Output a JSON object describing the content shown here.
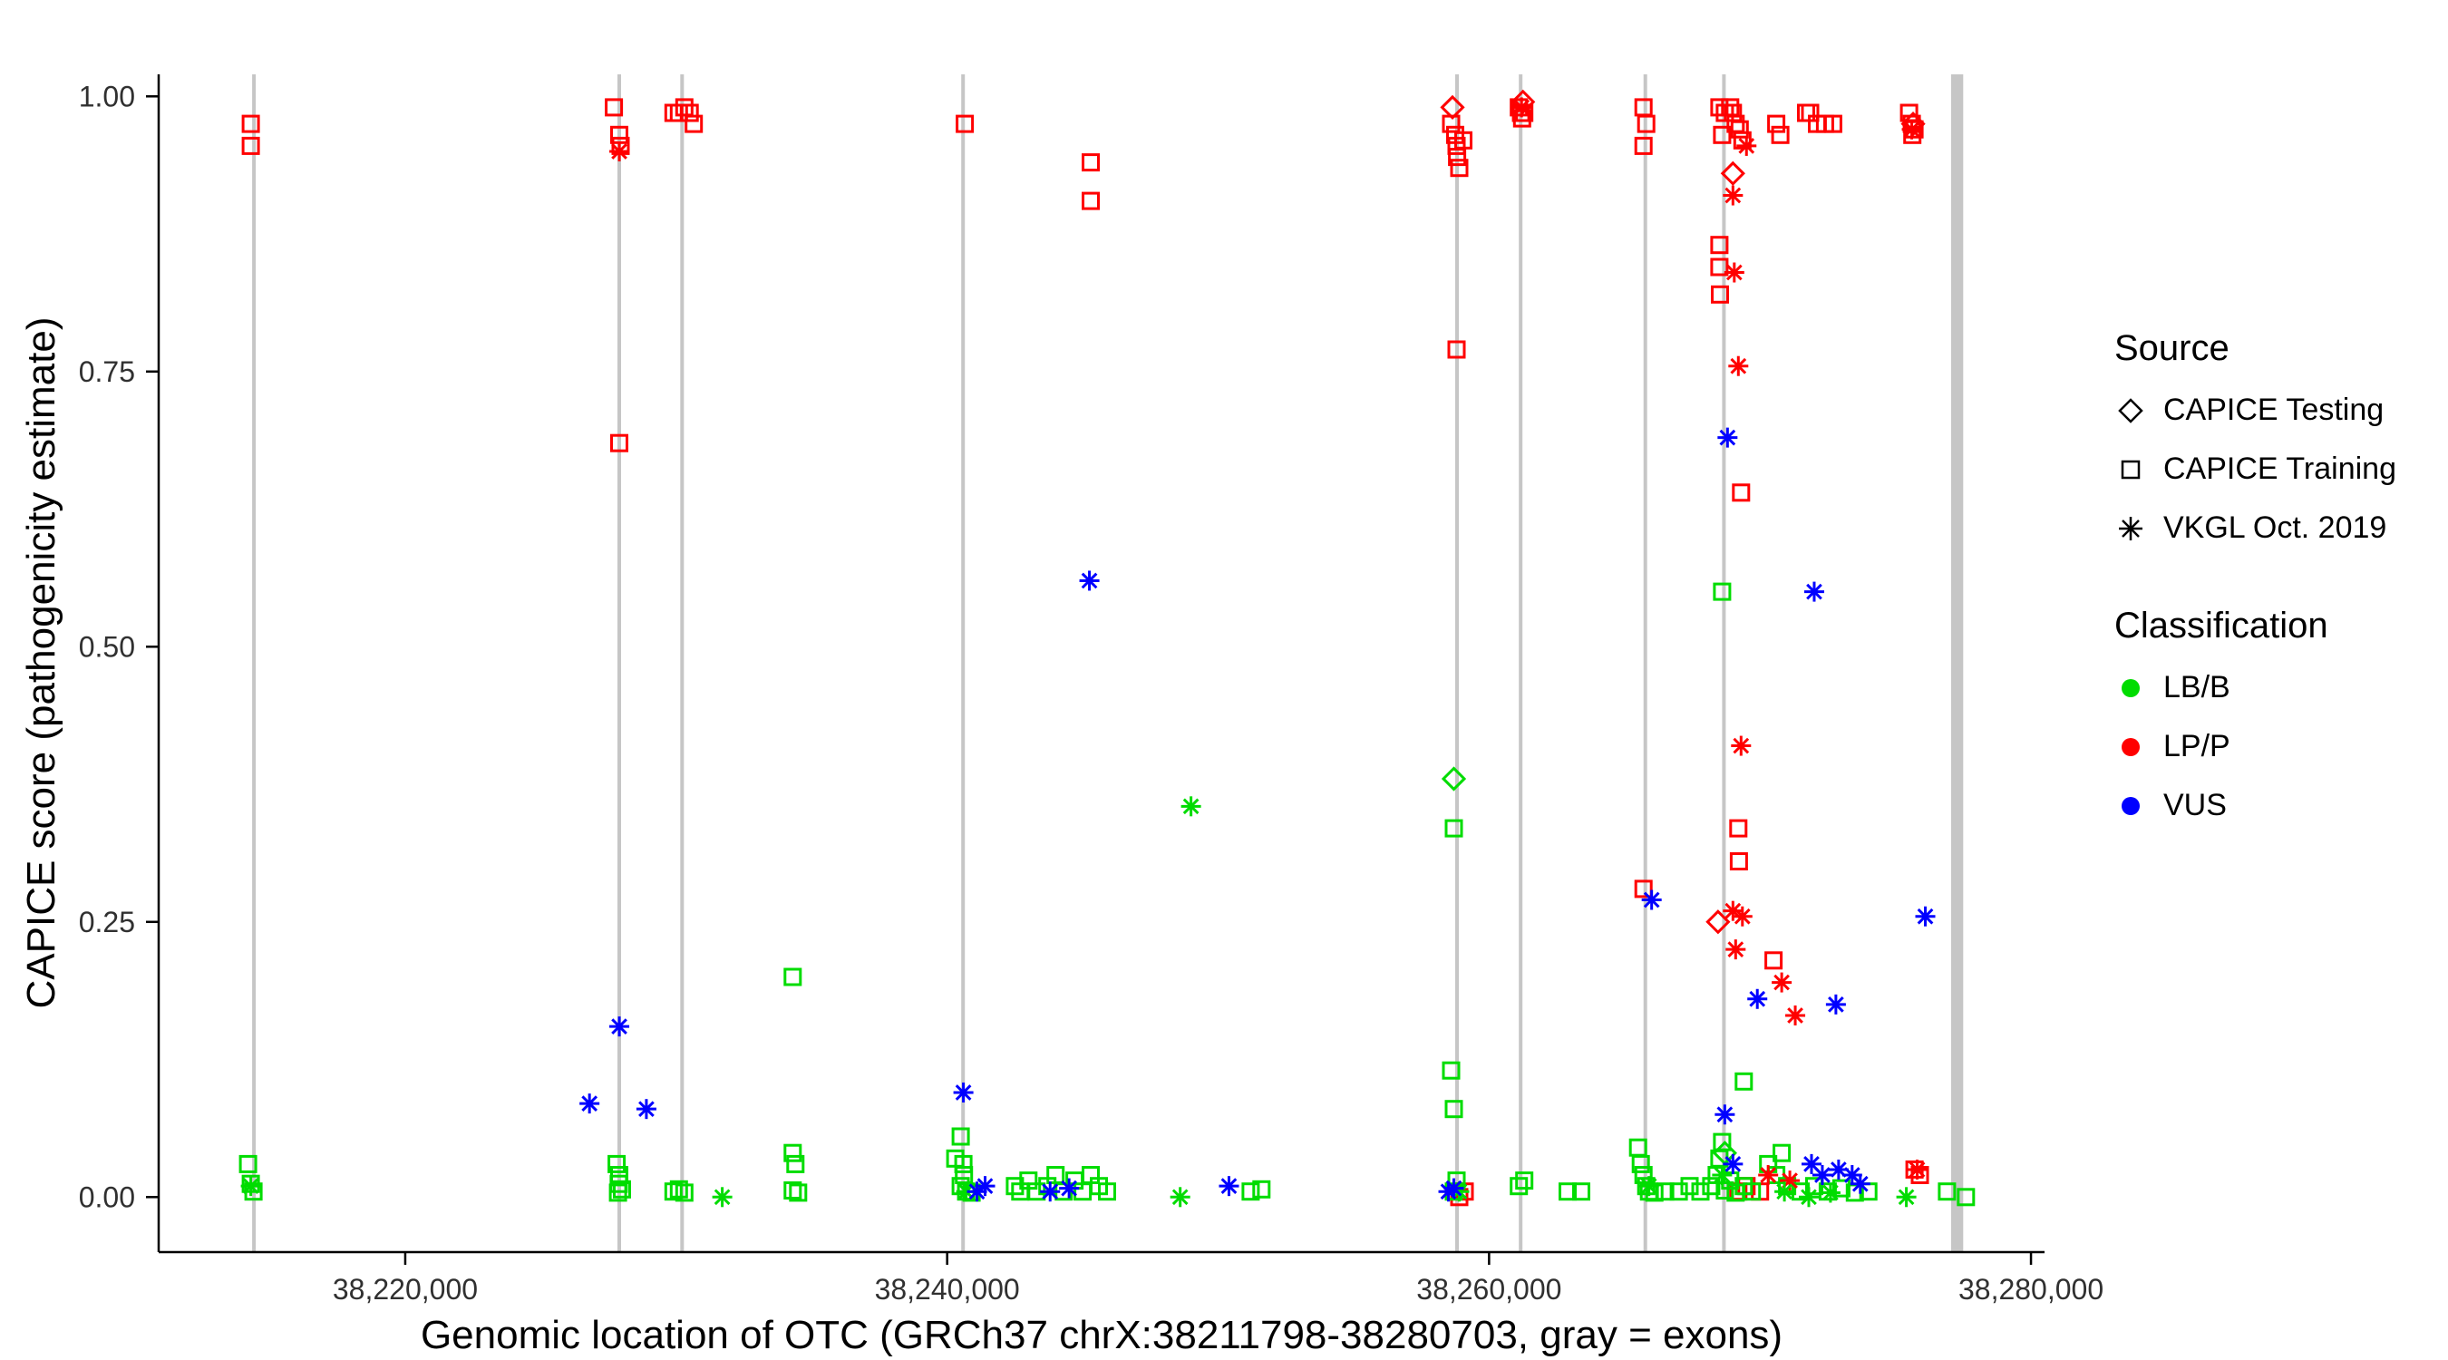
{
  "legend": {
    "source": {
      "title": "Source",
      "items": [
        {
          "label": "CAPICE Testing",
          "marker": "diamond"
        },
        {
          "label": "CAPICE Training",
          "marker": "square"
        },
        {
          "label": "VKGL Oct. 2019",
          "marker": "asterisk"
        }
      ]
    },
    "classification": {
      "title": "Classification",
      "items": [
        {
          "label": "LB/B"
        },
        {
          "label": "LP/P"
        },
        {
          "label": "VUS"
        }
      ]
    }
  },
  "chart_data": {
    "type": "scatter",
    "xlabel": "Genomic location of OTC (GRCh37 chrX:38211798-38280703, gray = exons)",
    "ylabel": "CAPICE score (pathogenicity estimate)",
    "xlim": [
      38210900,
      38280500
    ],
    "ylim": [
      -0.05,
      1.02
    ],
    "xticks": [
      {
        "value": 38220000,
        "label": "38,220,000"
      },
      {
        "value": 38240000,
        "label": "38,240,000"
      },
      {
        "value": 38260000,
        "label": "38,260,000"
      },
      {
        "value": 38280000,
        "label": "38,280,000"
      }
    ],
    "yticks": [
      {
        "value": 0.0,
        "label": "0.00"
      },
      {
        "value": 0.25,
        "label": "0.25"
      },
      {
        "value": 0.5,
        "label": "0.50"
      },
      {
        "value": 0.75,
        "label": "0.75"
      },
      {
        "value": 1.0,
        "label": "1.00"
      }
    ],
    "colors": {
      "LB/B": "#00DC00",
      "LP/P": "#FF0000",
      "VUS": "#0000FF",
      "exon": "#C6C6C6",
      "axis": "#000000",
      "tick_text": "#303030"
    },
    "exons": [
      [
        38214350,
        38214480
      ],
      [
        38227830,
        38227960
      ],
      [
        38230150,
        38230280
      ],
      [
        38240520,
        38240650
      ],
      [
        38258750,
        38258880
      ],
      [
        38261100,
        38261230
      ],
      [
        38265700,
        38265830
      ],
      [
        38268600,
        38268730
      ],
      [
        38277050,
        38277500
      ]
    ],
    "series": [
      {
        "source": "CAPICE Testing",
        "classification": "LP/P",
        "points": [
          [
            38258650,
            0.99
          ],
          [
            38261250,
            0.995
          ],
          [
            38269000,
            0.93
          ],
          [
            38268450,
            0.25
          ],
          [
            38275650,
            0.975
          ]
        ]
      },
      {
        "source": "CAPICE Testing",
        "classification": "LB/B",
        "points": [
          [
            38258700,
            0.38
          ],
          [
            38268700,
            0.04
          ]
        ]
      },
      {
        "source": "CAPICE Training",
        "classification": "LP/P",
        "points": [
          [
            38214300,
            0.975
          ],
          [
            38214300,
            0.955
          ],
          [
            38227700,
            0.99
          ],
          [
            38227900,
            0.965
          ],
          [
            38227950,
            0.955
          ],
          [
            38227900,
            0.685
          ],
          [
            38229900,
            0.985
          ],
          [
            38230100,
            0.985
          ],
          [
            38230300,
            0.99
          ],
          [
            38230500,
            0.985
          ],
          [
            38230650,
            0.975
          ],
          [
            38240650,
            0.975
          ],
          [
            38245300,
            0.94
          ],
          [
            38245300,
            0.905
          ],
          [
            38258600,
            0.975
          ],
          [
            38258750,
            0.965
          ],
          [
            38258800,
            0.955
          ],
          [
            38258820,
            0.945
          ],
          [
            38258900,
            0.935
          ],
          [
            38259050,
            0.96
          ],
          [
            38258800,
            0.77
          ],
          [
            38258900,
            0.0
          ],
          [
            38259100,
            0.005
          ],
          [
            38261100,
            0.99
          ],
          [
            38261180,
            0.985
          ],
          [
            38261300,
            0.985
          ],
          [
            38261220,
            0.98
          ],
          [
            38265700,
            0.99
          ],
          [
            38265800,
            0.975
          ],
          [
            38265700,
            0.955
          ],
          [
            38265700,
            0.28
          ],
          [
            38268500,
            0.99
          ],
          [
            38268700,
            0.985
          ],
          [
            38268900,
            0.99
          ],
          [
            38269000,
            0.985
          ],
          [
            38269100,
            0.975
          ],
          [
            38269250,
            0.97
          ],
          [
            38268600,
            0.965
          ],
          [
            38269350,
            0.96
          ],
          [
            38268500,
            0.865
          ],
          [
            38268500,
            0.845
          ],
          [
            38268520,
            0.82
          ],
          [
            38269300,
            0.64
          ],
          [
            38269200,
            0.335
          ],
          [
            38269220,
            0.305
          ],
          [
            38270500,
            0.215
          ],
          [
            38270600,
            0.975
          ],
          [
            38270750,
            0.965
          ],
          [
            38271700,
            0.985
          ],
          [
            38271850,
            0.985
          ],
          [
            38272100,
            0.975
          ],
          [
            38272400,
            0.975
          ],
          [
            38272700,
            0.975
          ],
          [
            38269200,
            0.005
          ],
          [
            38269500,
            0.01
          ],
          [
            38270000,
            0.005
          ],
          [
            38275500,
            0.985
          ],
          [
            38275600,
            0.975
          ],
          [
            38275700,
            0.97
          ],
          [
            38275620,
            0.965
          ],
          [
            38275700,
            0.025
          ],
          [
            38275900,
            0.02
          ]
        ]
      },
      {
        "source": "CAPICE Training",
        "classification": "LB/B",
        "points": [
          [
            38214200,
            0.03
          ],
          [
            38214300,
            0.012
          ],
          [
            38214400,
            0.005
          ],
          [
            38227800,
            0.03
          ],
          [
            38227900,
            0.02
          ],
          [
            38227880,
            0.012
          ],
          [
            38228000,
            0.007
          ],
          [
            38227850,
            0.004
          ],
          [
            38229900,
            0.005
          ],
          [
            38230100,
            0.007
          ],
          [
            38230300,
            0.004
          ],
          [
            38234300,
            0.2
          ],
          [
            38234300,
            0.04
          ],
          [
            38234400,
            0.03
          ],
          [
            38234300,
            0.006
          ],
          [
            38234500,
            0.004
          ],
          [
            38240300,
            0.035
          ],
          [
            38240500,
            0.055
          ],
          [
            38240600,
            0.03
          ],
          [
            38240620,
            0.02
          ],
          [
            38240500,
            0.01
          ],
          [
            38240700,
            0.005
          ],
          [
            38240900,
            0.004
          ],
          [
            38242500,
            0.01
          ],
          [
            38242700,
            0.005
          ],
          [
            38243000,
            0.015
          ],
          [
            38243300,
            0.005
          ],
          [
            38243700,
            0.01
          ],
          [
            38244000,
            0.02
          ],
          [
            38244300,
            0.005
          ],
          [
            38244700,
            0.015
          ],
          [
            38245000,
            0.005
          ],
          [
            38245300,
            0.02
          ],
          [
            38245600,
            0.01
          ],
          [
            38245900,
            0.005
          ],
          [
            38251200,
            0.005
          ],
          [
            38251600,
            0.007
          ],
          [
            38258600,
            0.115
          ],
          [
            38258700,
            0.08
          ],
          [
            38258800,
            0.015
          ],
          [
            38258700,
            0.005
          ],
          [
            38258700,
            0.335
          ],
          [
            38261100,
            0.01
          ],
          [
            38261300,
            0.015
          ],
          [
            38262900,
            0.005
          ],
          [
            38263400,
            0.005
          ],
          [
            38265500,
            0.045
          ],
          [
            38265600,
            0.03
          ],
          [
            38265700,
            0.02
          ],
          [
            38265800,
            0.01
          ],
          [
            38265900,
            0.005
          ],
          [
            38266100,
            0.004
          ],
          [
            38266500,
            0.005
          ],
          [
            38267000,
            0.005
          ],
          [
            38267400,
            0.01
          ],
          [
            38267800,
            0.005
          ],
          [
            38268200,
            0.01
          ],
          [
            38268400,
            0.02
          ],
          [
            38268500,
            0.035
          ],
          [
            38268600,
            0.05
          ],
          [
            38268700,
            0.006
          ],
          [
            38268900,
            0.015
          ],
          [
            38269100,
            0.004
          ],
          [
            38269400,
            0.01
          ],
          [
            38269700,
            0.005
          ],
          [
            38268600,
            0.55
          ],
          [
            38269400,
            0.105
          ],
          [
            38270300,
            0.03
          ],
          [
            38270600,
            0.02
          ],
          [
            38270800,
            0.04
          ],
          [
            38271000,
            0.01
          ],
          [
            38271500,
            0.005
          ],
          [
            38272000,
            0.01
          ],
          [
            38272500,
            0.005
          ],
          [
            38273000,
            0.008
          ],
          [
            38273500,
            0.004
          ],
          [
            38274000,
            0.005
          ],
          [
            38276900,
            0.005
          ],
          [
            38277600,
            0.0
          ]
        ]
      },
      {
        "source": "VKGL Oct. 2019",
        "classification": "LP/P",
        "points": [
          [
            38227900,
            0.95
          ],
          [
            38261200,
            0.99
          ],
          [
            38269500,
            0.955
          ],
          [
            38269000,
            0.91
          ],
          [
            38269050,
            0.84
          ],
          [
            38269200,
            0.755
          ],
          [
            38269300,
            0.41
          ],
          [
            38269000,
            0.26
          ],
          [
            38269350,
            0.255
          ],
          [
            38269100,
            0.225
          ],
          [
            38270800,
            0.195
          ],
          [
            38271300,
            0.165
          ],
          [
            38270300,
            0.02
          ],
          [
            38271100,
            0.015
          ],
          [
            38275600,
            0.97
          ],
          [
            38275800,
            0.025
          ]
        ]
      },
      {
        "source": "VKGL Oct. 2019",
        "classification": "LB/B",
        "points": [
          [
            38214300,
            0.01
          ],
          [
            38231700,
            0.0
          ],
          [
            38240700,
            0.005
          ],
          [
            38248600,
            0.0
          ],
          [
            38249000,
            0.355
          ],
          [
            38258900,
            0.005
          ],
          [
            38265900,
            0.01
          ],
          [
            38268600,
            0.02
          ],
          [
            38270900,
            0.005
          ],
          [
            38271800,
            0.0
          ],
          [
            38272600,
            0.004
          ],
          [
            38275400,
            0.0
          ]
        ]
      },
      {
        "source": "VKGL Oct. 2019",
        "classification": "VUS",
        "points": [
          [
            38226800,
            0.085
          ],
          [
            38227900,
            0.155
          ],
          [
            38228900,
            0.08
          ],
          [
            38240600,
            0.095
          ],
          [
            38241100,
            0.005
          ],
          [
            38241400,
            0.01
          ],
          [
            38243800,
            0.005
          ],
          [
            38244500,
            0.008
          ],
          [
            38245250,
            0.56
          ],
          [
            38250400,
            0.01
          ],
          [
            38258500,
            0.005
          ],
          [
            38258700,
            0.008
          ],
          [
            38266000,
            0.27
          ],
          [
            38268800,
            0.69
          ],
          [
            38268700,
            0.075
          ],
          [
            38269000,
            0.03
          ],
          [
            38269900,
            0.18
          ],
          [
            38272800,
            0.175
          ],
          [
            38272000,
            0.55
          ],
          [
            38271900,
            0.03
          ],
          [
            38272300,
            0.02
          ],
          [
            38272900,
            0.025
          ],
          [
            38273400,
            0.02
          ],
          [
            38273700,
            0.012
          ],
          [
            38276100,
            0.255
          ]
        ]
      }
    ]
  }
}
